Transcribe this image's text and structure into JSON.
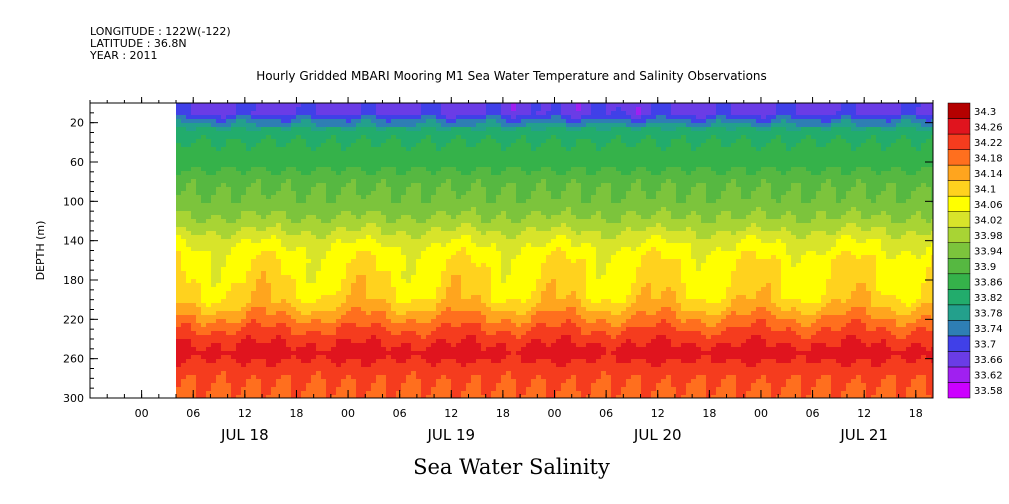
{
  "header": {
    "longitude": "LONGITUDE : 122W(-122)",
    "latitude": "LATITUDE : 36.8N",
    "year": "YEAR : 2011"
  },
  "footer": {
    "caption": "Sea Water Salinity"
  },
  "chart_data": {
    "type": "heatmap",
    "title": "Hourly Gridded MBARI Mooring M1 Sea Water Temperature and Salinity Observations",
    "xlabel": "",
    "ylabel": "DEPTH (m)",
    "ylim": [
      300,
      0
    ],
    "y_ticks": [
      20,
      60,
      100,
      140,
      180,
      220,
      260,
      300
    ],
    "x_hour_ticks": [
      "00",
      "06",
      "12",
      "18",
      "00",
      "06",
      "12",
      "18",
      "00",
      "06",
      "12",
      "18",
      "00",
      "06",
      "12",
      "18"
    ],
    "x_day_labels": [
      "JUL 18",
      "JUL 19",
      "JUL 20",
      "JUL 21"
    ],
    "x_range_hours": [
      -6,
      92
    ],
    "data_start_hour": 4,
    "colorbar": {
      "levels": [
        33.58,
        33.62,
        33.66,
        33.7,
        33.74,
        33.78,
        33.82,
        33.86,
        33.9,
        33.94,
        33.98,
        34.02,
        34.06,
        34.1,
        34.14,
        34.18,
        34.22,
        34.26,
        34.3
      ],
      "colors": [
        "#cc00ff",
        "#a020f0",
        "#6a3ce6",
        "#4040e8",
        "#2e7eb4",
        "#23a08c",
        "#22ac6c",
        "#35b24a",
        "#56b841",
        "#7cc43c",
        "#a8d434",
        "#d8e42a",
        "#ffff00",
        "#ffd21e",
        "#ffa51e",
        "#ff6f1e",
        "#f53c1e",
        "#e0141e",
        "#b40000"
      ]
    },
    "profile": [
      {
        "depth": 10,
        "value": 33.71
      },
      {
        "depth": 20,
        "value": 33.79
      },
      {
        "depth": 30,
        "value": 33.84
      },
      {
        "depth": 45,
        "value": 33.87
      },
      {
        "depth": 60,
        "value": 33.88
      },
      {
        "depth": 80,
        "value": 33.93
      },
      {
        "depth": 100,
        "value": 33.95
      },
      {
        "depth": 120,
        "value": 33.99
      },
      {
        "depth": 140,
        "value": 34.05
      },
      {
        "depth": 160,
        "value": 34.09
      },
      {
        "depth": 180,
        "value": 34.1
      },
      {
        "depth": 200,
        "value": 34.12
      },
      {
        "depth": 215,
        "value": 34.17
      },
      {
        "depth": 230,
        "value": 34.22
      },
      {
        "depth": 245,
        "value": 34.26
      },
      {
        "depth": 255,
        "value": 34.28
      },
      {
        "depth": 270,
        "value": 34.24
      },
      {
        "depth": 285,
        "value": 34.22
      },
      {
        "depth": 300,
        "value": 34.21
      }
    ]
  }
}
